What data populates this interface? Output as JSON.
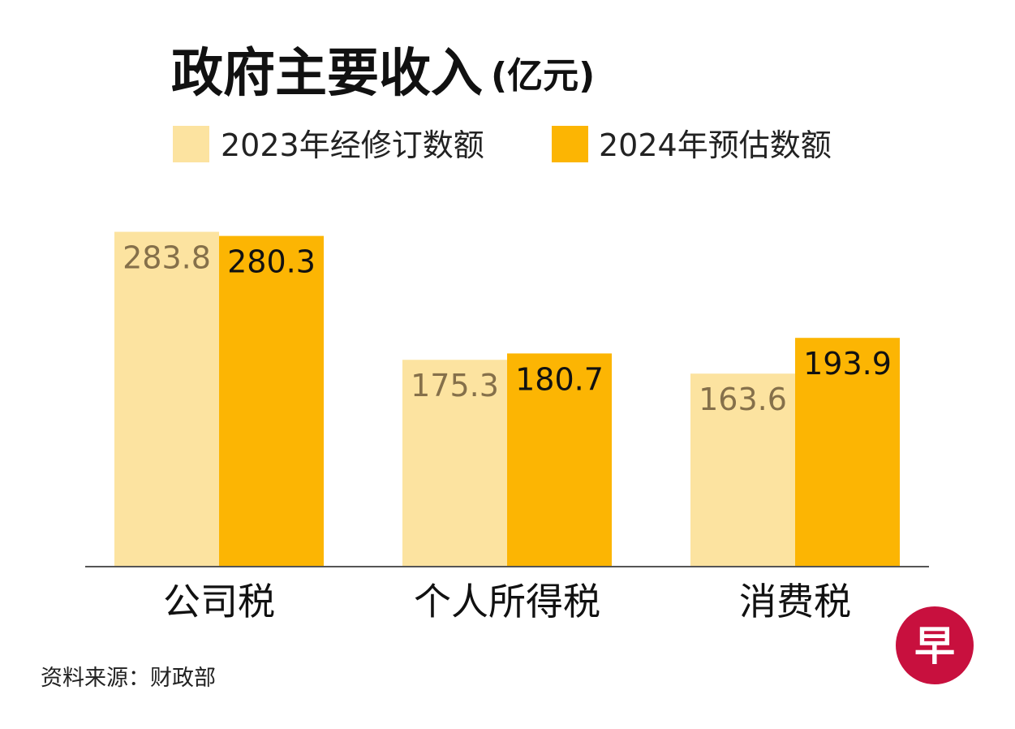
{
  "chart_data": {
    "type": "bar",
    "title": "政府主要收入",
    "title_unit": "(亿元)",
    "categories": [
      "公司税",
      "个人所得税",
      "消费税"
    ],
    "series": [
      {
        "name": "2023年经修订数额",
        "values": [
          283.8,
          175.3,
          163.6
        ],
        "color": "#FCE3A0",
        "label_color": "#85704A"
      },
      {
        "name": "2024年预估数额",
        "values": [
          280.3,
          180.7,
          193.9
        ],
        "color": "#FCB503",
        "label_color": "#111111"
      }
    ],
    "ylim": [
      0,
      300
    ],
    "grid": false,
    "legend_position": "top-center",
    "baseline_color": "#555555",
    "source": "资料来源：财政部"
  },
  "logo": {
    "icon": "zaobao-logo-icon",
    "text": "早",
    "color": "#C8103E"
  }
}
